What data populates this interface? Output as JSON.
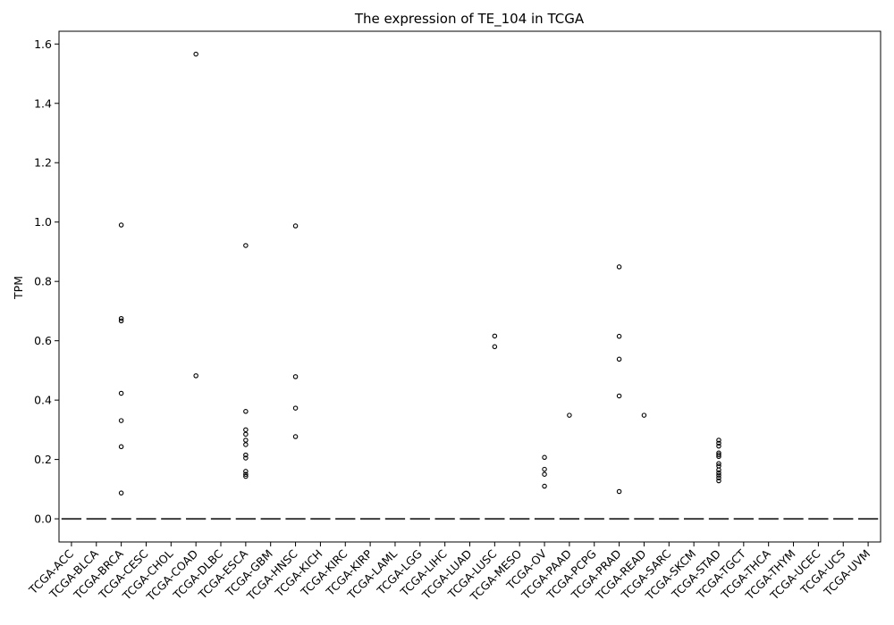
{
  "chart_data": {
    "type": "box",
    "title": "The expression of TE_104 in TCGA",
    "xlabel": "",
    "ylabel": "TPM",
    "ylim": [
      -0.078,
      1.643
    ],
    "yticks": [
      0.0,
      0.2,
      0.4,
      0.6,
      0.8,
      1.0,
      1.2,
      1.4,
      1.6
    ],
    "ytick_labels": [
      "0.0",
      "0.2",
      "0.4",
      "0.6",
      "0.8",
      "1.0",
      "1.2",
      "1.4",
      "1.6"
    ],
    "grid": false,
    "box_median": 0.0,
    "categories": [
      "TCGA-ACC",
      "TCGA-BLCA",
      "TCGA-BRCA",
      "TCGA-CESC",
      "TCGA-CHOL",
      "TCGA-COAD",
      "TCGA-DLBC",
      "TCGA-ESCA",
      "TCGA-GBM",
      "TCGA-HNSC",
      "TCGA-KICH",
      "TCGA-KIRC",
      "TCGA-KIRP",
      "TCGA-LAML",
      "TCGA-LGG",
      "TCGA-LIHC",
      "TCGA-LUAD",
      "TCGA-LUSC",
      "TCGA-MESO",
      "TCGA-OV",
      "TCGA-PAAD",
      "TCGA-PCPG",
      "TCGA-PRAD",
      "TCGA-READ",
      "TCGA-SARC",
      "TCGA-SKCM",
      "TCGA-STAD",
      "TCGA-TGCT",
      "TCGA-THCA",
      "TCGA-THYM",
      "TCGA-UCEC",
      "TCGA-UCS",
      "TCGA-UVM"
    ],
    "outliers": [
      [],
      [],
      [
        0.99,
        0.675,
        0.667,
        0.423,
        0.331,
        0.243,
        0.087
      ],
      [],
      [],
      [
        1.566,
        0.482
      ],
      [],
      [
        0.921,
        0.362,
        0.3,
        0.285,
        0.265,
        0.25,
        0.215,
        0.205,
        0.16,
        0.15,
        0.143
      ],
      [],
      [
        0.987,
        0.479,
        0.373,
        0.277
      ],
      [],
      [],
      [],
      [],
      [],
      [],
      [],
      [
        0.616,
        0.58
      ],
      [],
      [
        0.207,
        0.167,
        0.15,
        0.11
      ],
      [
        0.349
      ],
      [],
      [
        0.849,
        0.615,
        0.538,
        0.414,
        0.092
      ],
      [
        0.349
      ],
      [],
      [],
      [
        0.265,
        0.255,
        0.245,
        0.222,
        0.216,
        0.21,
        0.186,
        0.178,
        0.165,
        0.155,
        0.147,
        0.138,
        0.128
      ],
      [],
      [],
      [],
      [],
      [],
      []
    ]
  }
}
